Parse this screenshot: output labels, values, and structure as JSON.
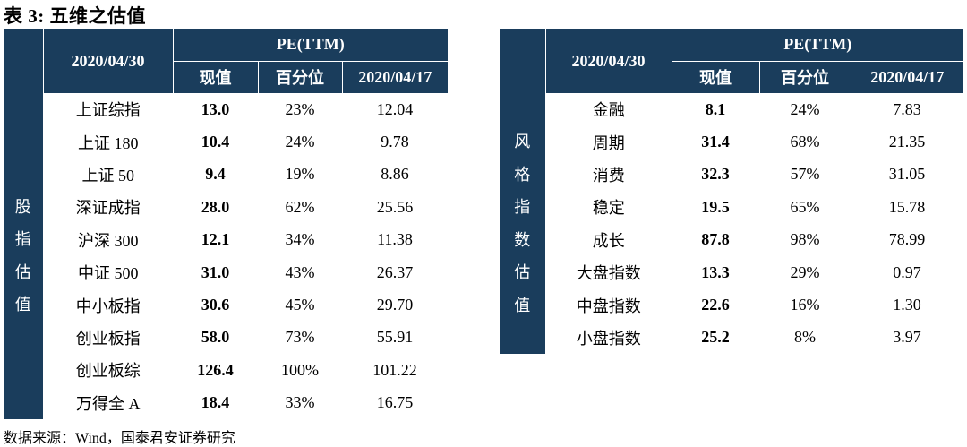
{
  "title": "表 3:  五维之估值",
  "source": "数据来源：Wind，国泰君安证券研究",
  "left": {
    "side_label": [
      "股",
      "指",
      "估",
      "值"
    ],
    "date_header": "2020/04/30",
    "pe_header": "PE(TTM)",
    "col_now": "现值",
    "col_pct": "百分位",
    "col_prev": "2020/04/17",
    "rows": [
      {
        "name": "上证综指",
        "now": "13.0",
        "pct": "23%",
        "prev": "12.04"
      },
      {
        "name": "上证 180",
        "now": "10.4",
        "pct": "24%",
        "prev": "9.78"
      },
      {
        "name": "上证 50",
        "now": "9.4",
        "pct": "19%",
        "prev": "8.86"
      },
      {
        "name": "深证成指",
        "now": "28.0",
        "pct": "62%",
        "prev": "25.56"
      },
      {
        "name": "沪深 300",
        "now": "12.1",
        "pct": "34%",
        "prev": "11.38"
      },
      {
        "name": "中证 500",
        "now": "31.0",
        "pct": "43%",
        "prev": "26.37"
      },
      {
        "name": "中小板指",
        "now": "30.6",
        "pct": "45%",
        "prev": "29.70"
      },
      {
        "name": "创业板指",
        "now": "58.0",
        "pct": "73%",
        "prev": "55.91"
      },
      {
        "name": "创业板综",
        "now": "126.4",
        "pct": "100%",
        "prev": "101.22"
      },
      {
        "name": "万得全 A",
        "now": "18.4",
        "pct": "33%",
        "prev": "16.75"
      }
    ]
  },
  "right": {
    "side_label": [
      "风",
      "格",
      "指",
      "数",
      "估",
      "值"
    ],
    "date_header": "2020/04/30",
    "pe_header": "PE(TTM)",
    "col_now": "现值",
    "col_pct": "百分位",
    "col_prev": "2020/04/17",
    "rows": [
      {
        "name": "金融",
        "now": "8.1",
        "pct": "24%",
        "prev": "7.83"
      },
      {
        "name": "周期",
        "now": "31.4",
        "pct": "68%",
        "prev": "21.35"
      },
      {
        "name": "消费",
        "now": "32.3",
        "pct": "57%",
        "prev": "31.05"
      },
      {
        "name": "稳定",
        "now": "19.5",
        "pct": "65%",
        "prev": "15.78"
      },
      {
        "name": "成长",
        "now": "87.8",
        "pct": "98%",
        "prev": "78.99"
      },
      {
        "name": "大盘指数",
        "now": "13.3",
        "pct": "29%",
        "prev": "0.97"
      },
      {
        "name": "中盘指数",
        "now": "22.6",
        "pct": "16%",
        "prev": "1.30"
      },
      {
        "name": "小盘指数",
        "now": "25.2",
        "pct": "8%",
        "prev": "3.97"
      }
    ]
  },
  "colors": {
    "header_bg": "#1a3d5c",
    "header_text": "#ffffff"
  }
}
